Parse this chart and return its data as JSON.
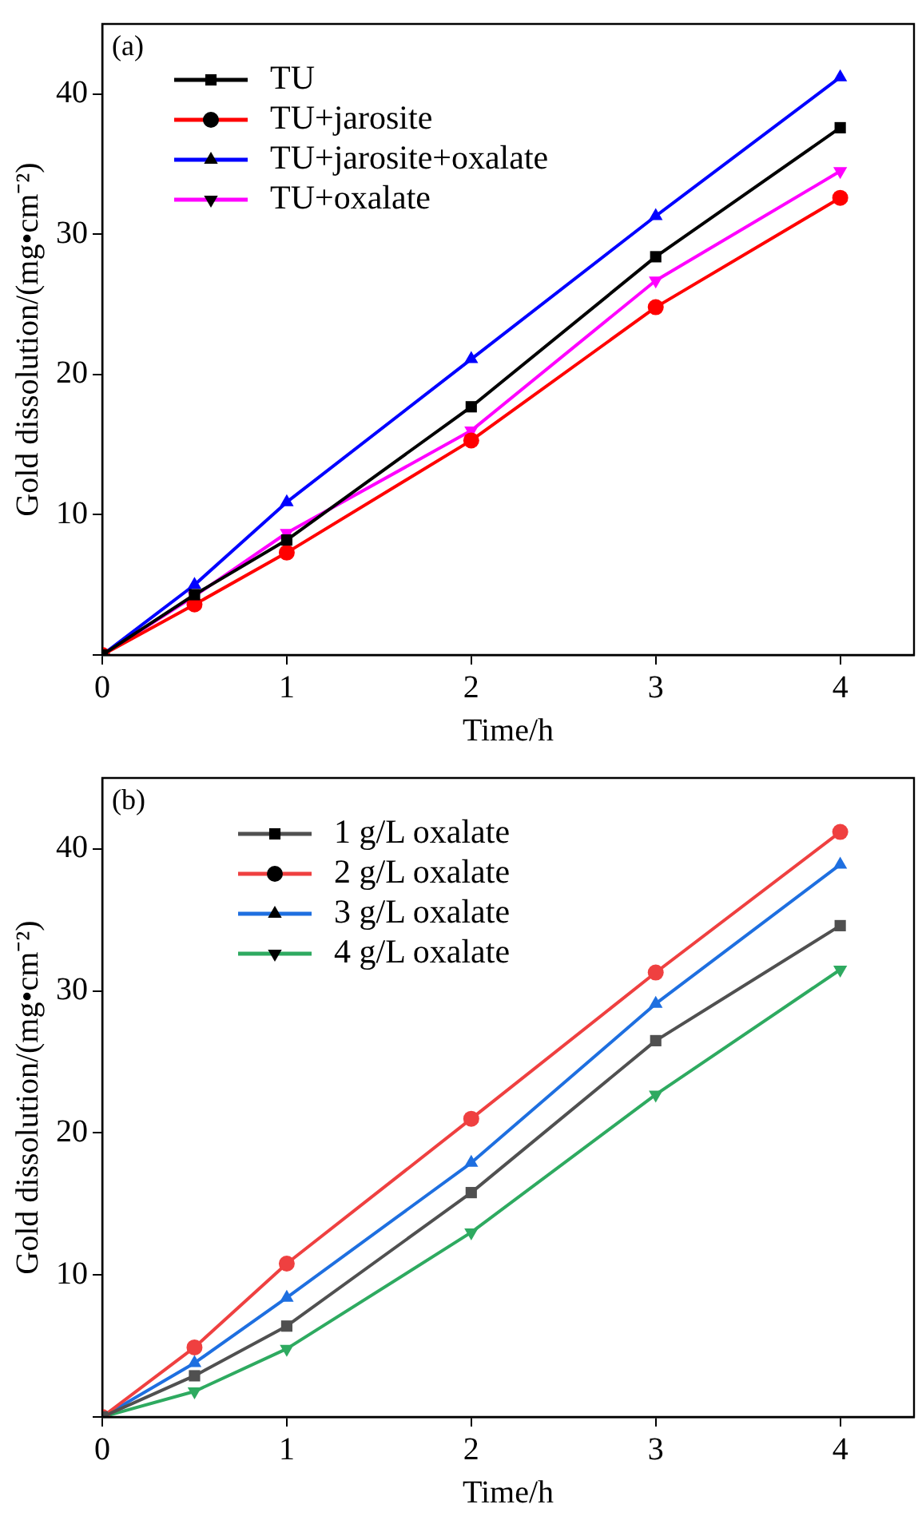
{
  "chart_data": [
    {
      "type": "line",
      "annotations": [
        "(a)"
      ],
      "xlabel": "Time/h",
      "ylabel": "Gold dissolution/(mg•cm⁻²)",
      "x": [
        0,
        0.5,
        1,
        2,
        3,
        4
      ],
      "xlim": [
        0,
        4.4
      ],
      "xticks": [
        0,
        1,
        2,
        3,
        4
      ],
      "ylim": [
        0,
        45
      ],
      "yticks": [
        {
          "value": 0,
          "label": null
        },
        10,
        20,
        30,
        40
      ],
      "grid": false,
      "legend": "top left",
      "series": [
        {
          "name": "TU",
          "color": "#000000",
          "marker": "square",
          "values": [
            0,
            4.3,
            8.2,
            17.7,
            28.4,
            37.6
          ]
        },
        {
          "name": "TU+jarosite",
          "color": "#ff0000",
          "marker": "circle",
          "values": [
            0,
            3.6,
            7.3,
            15.3,
            24.8,
            32.6
          ]
        },
        {
          "name": "TU+jarosite+oxalate",
          "color": "#0000ff",
          "marker": "triangle",
          "values": [
            0,
            5.0,
            10.9,
            21.1,
            31.3,
            41.2
          ]
        },
        {
          "name": "TU+oxalate",
          "color": "#ff00ff",
          "marker": "triangle-down",
          "values": [
            0,
            4.2,
            8.7,
            16.0,
            26.7,
            34.5
          ]
        }
      ]
    },
    {
      "type": "line",
      "annotations": [
        "(b)"
      ],
      "xlabel": "Time/h",
      "ylabel": "Gold dissolution/(mg•cm⁻²)",
      "x": [
        0,
        0.5,
        1,
        2,
        3,
        4
      ],
      "xlim": [
        0,
        4.4
      ],
      "xticks": [
        0,
        1,
        2,
        3,
        4
      ],
      "ylim": [
        0,
        45
      ],
      "yticks": [
        {
          "value": 0,
          "label": null
        },
        10,
        20,
        30,
        40
      ],
      "grid": false,
      "legend": "top left",
      "series": [
        {
          "name": "1 g/L oxalate",
          "color": "#505050",
          "marker": "square",
          "values": [
            0,
            2.9,
            6.4,
            15.8,
            26.5,
            34.6
          ]
        },
        {
          "name": "2 g/L oxalate",
          "color": "#ef4040",
          "marker": "circle",
          "values": [
            0,
            4.9,
            10.8,
            21.0,
            31.3,
            41.2
          ]
        },
        {
          "name": "3 g/L oxalate",
          "color": "#1e6fe0",
          "marker": "triangle",
          "values": [
            0,
            3.8,
            8.4,
            17.9,
            29.1,
            38.9
          ]
        },
        {
          "name": "4 g/L oxalate",
          "color": "#2eaa60",
          "marker": "triangle-down",
          "values": [
            0,
            1.8,
            4.8,
            13.0,
            22.7,
            31.5
          ]
        }
      ]
    }
  ]
}
